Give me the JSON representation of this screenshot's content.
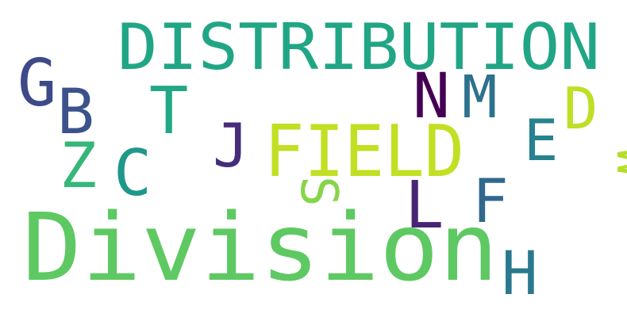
{
  "words": [
    {
      "text": "DISTRIBUTION",
      "color": "#21a685"
    },
    {
      "text": "Division",
      "color": "#5ec962"
    },
    {
      "text": "FIELD",
      "color": "#c2df23"
    },
    {
      "text": "G",
      "color": "#3e4989"
    },
    {
      "text": "B",
      "color": "#3b528b"
    },
    {
      "text": "T",
      "color": "#22a884"
    },
    {
      "text": "N",
      "color": "#440154"
    },
    {
      "text": "M",
      "color": "#2c728e"
    },
    {
      "text": "D",
      "color": "#bddf26"
    },
    {
      "text": "E",
      "color": "#26828e"
    },
    {
      "text": "W",
      "color": "#b5de2b"
    },
    {
      "text": "Z",
      "color": "#35b779"
    },
    {
      "text": "C",
      "color": "#1f988b"
    },
    {
      "text": "J",
      "color": "#472c7a"
    },
    {
      "text": "S",
      "color": "#86d549"
    },
    {
      "text": "L",
      "color": "#482475"
    },
    {
      "text": "F",
      "color": "#31688e"
    },
    {
      "text": "H",
      "color": "#2a788e"
    }
  ]
}
